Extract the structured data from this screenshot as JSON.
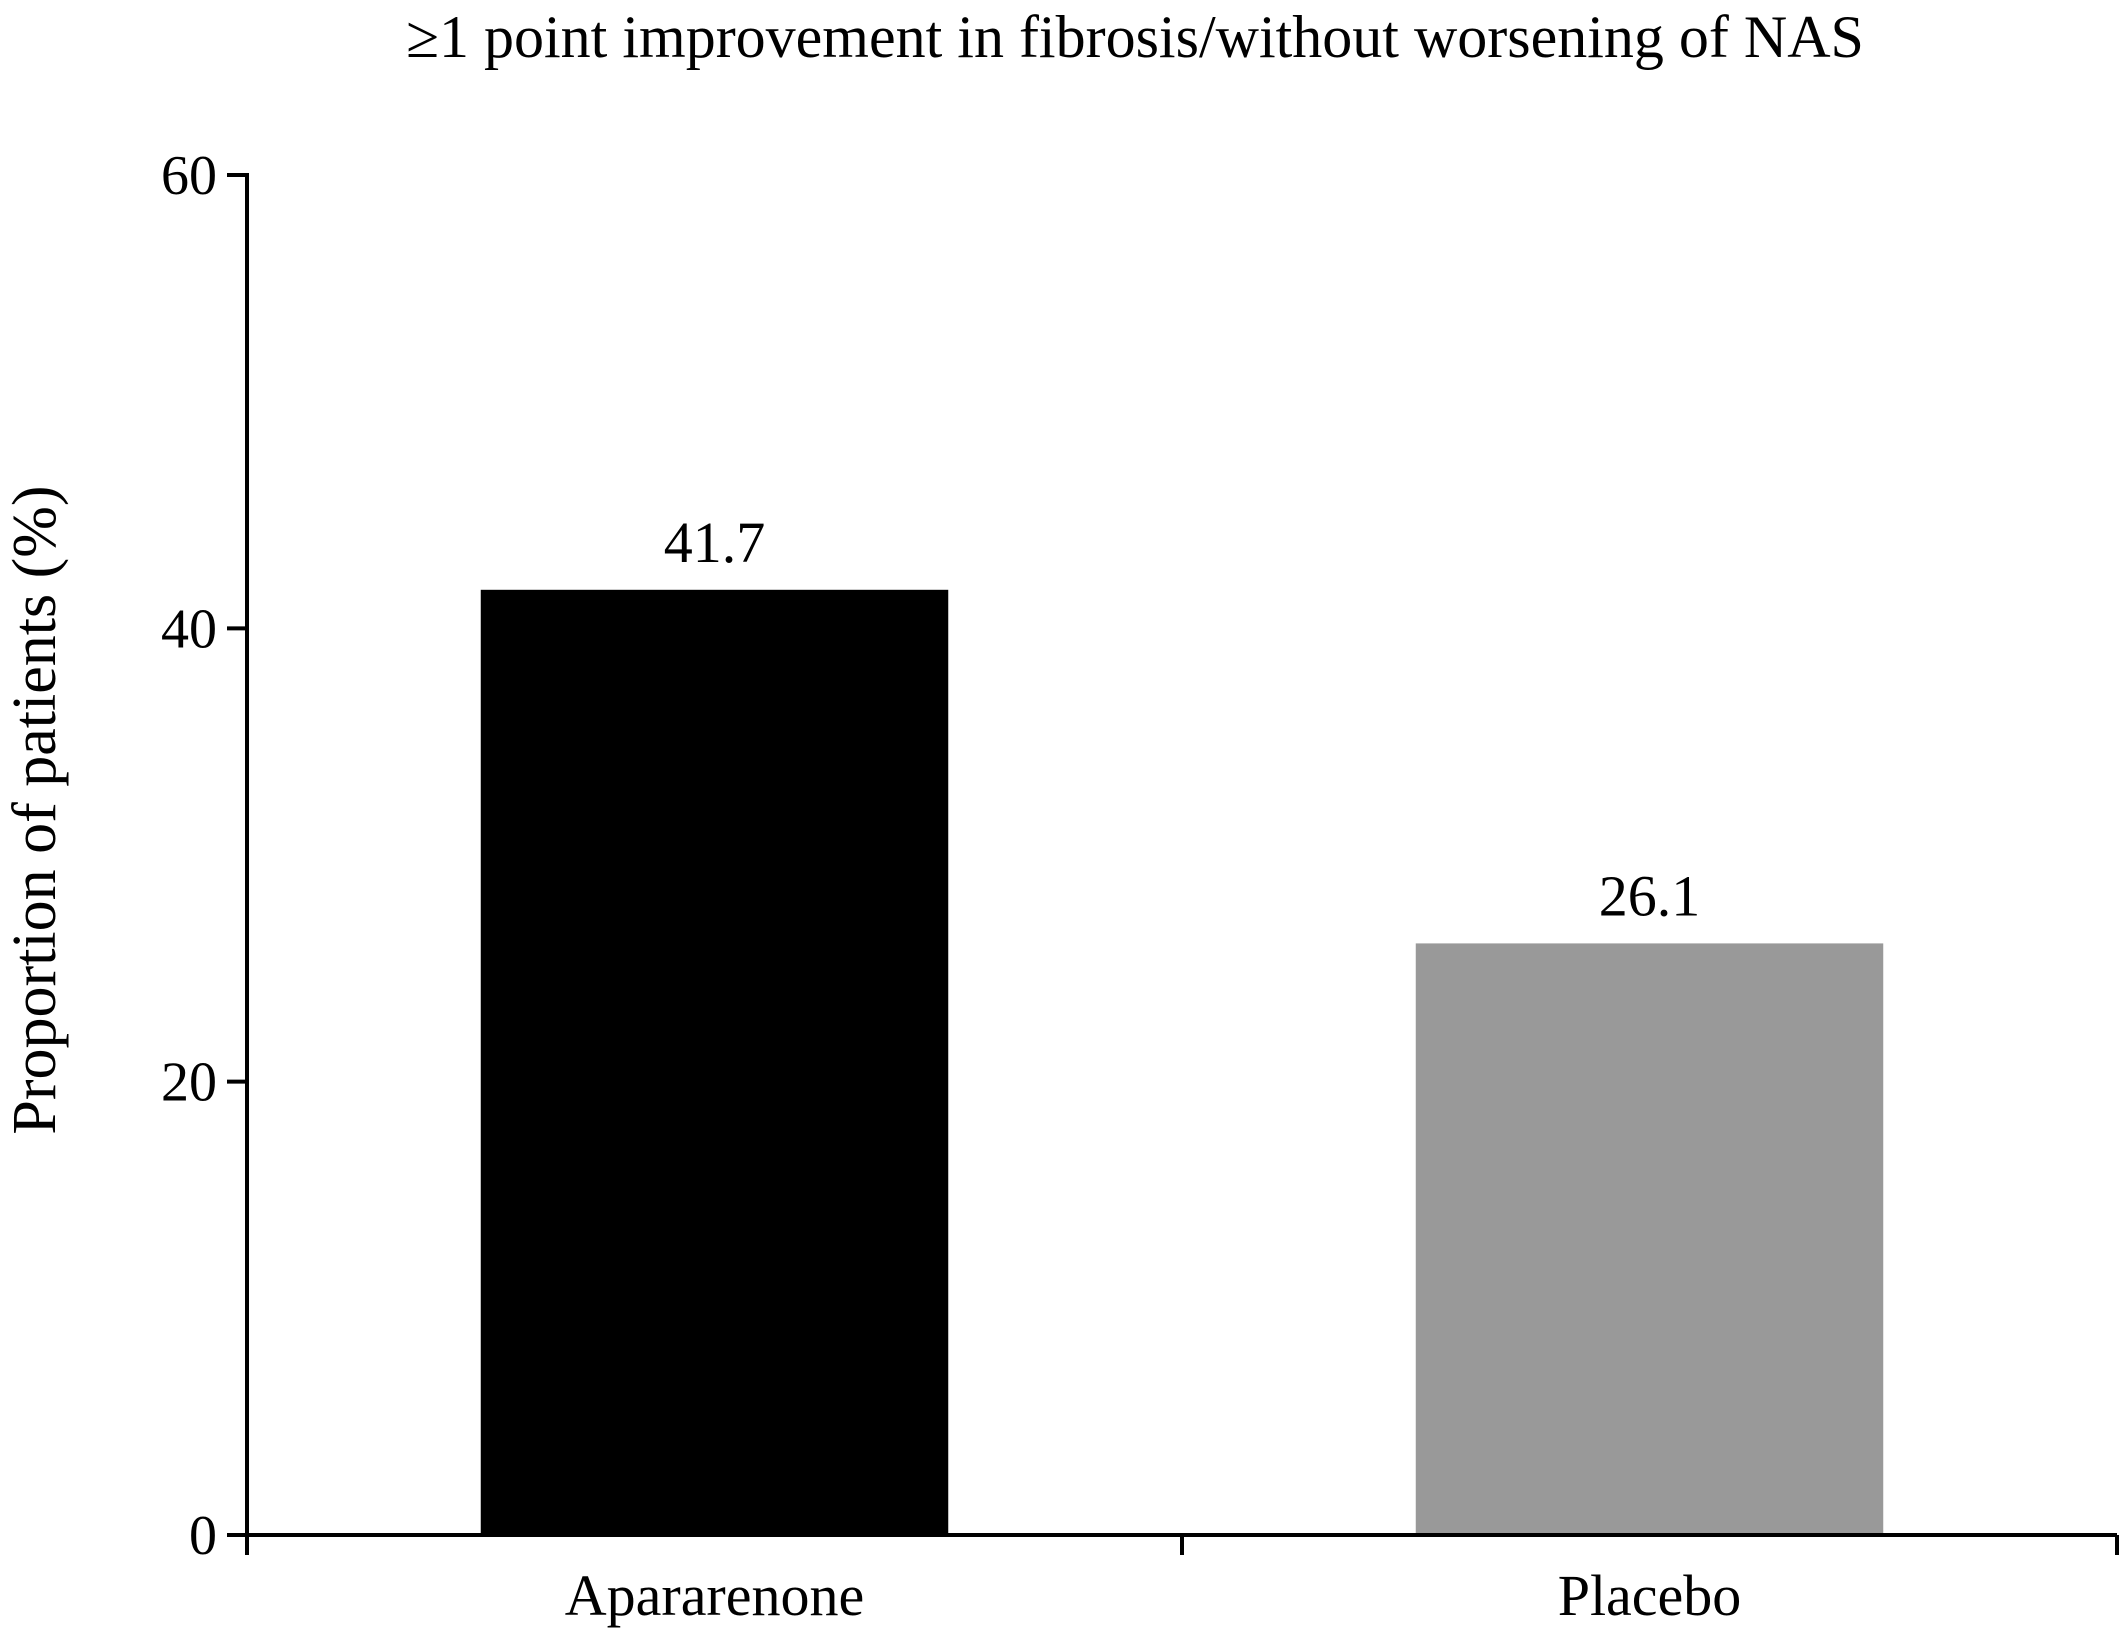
{
  "chart_data": {
    "type": "bar",
    "title": "≥1 point improvement in fibrosis/without worsening of NAS",
    "xlabel": "",
    "ylabel": "Proportion of patients (%)",
    "categories": [
      "Apararenone",
      "Placebo"
    ],
    "values": [
      41.7,
      26.1
    ],
    "value_labels": [
      "41.7",
      "26.1"
    ],
    "bar_colors": [
      "#000000",
      "#999999"
    ],
    "ylim": [
      0,
      60
    ],
    "yticks": [
      0,
      20,
      40,
      60
    ],
    "ytick_labels": [
      "0",
      "20",
      "40",
      "60"
    ],
    "grid": false,
    "legend": "none"
  }
}
